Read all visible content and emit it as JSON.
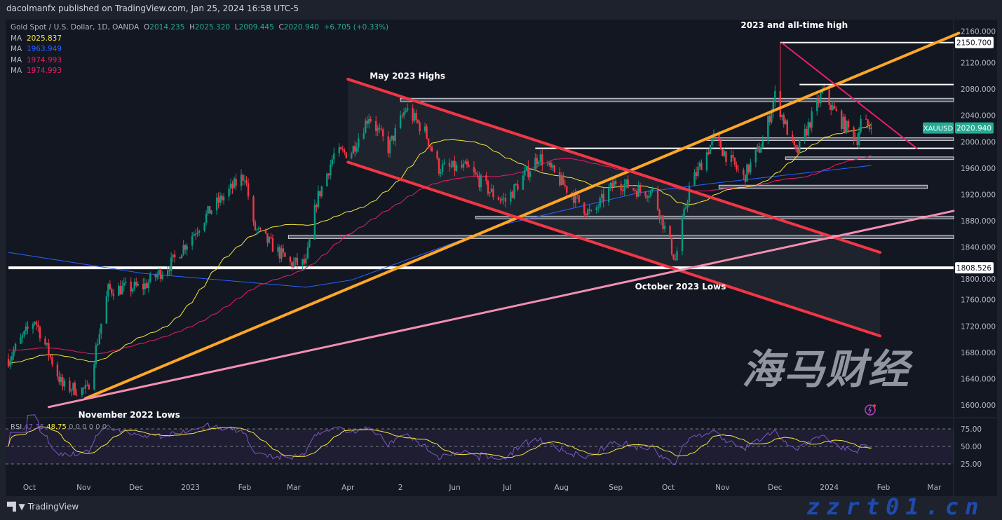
{
  "header": {
    "published": "dacolmanfx published on TradingView.com, Jan 25, 2024 16:58 UTC-5"
  },
  "legend": {
    "symbol": "Gold Spot / U.S. Dollar, 1D, OANDA",
    "open_label": "O",
    "open": "2014.235",
    "high_label": "H",
    "high": "2025.320",
    "low_label": "L",
    "low": "2009.445",
    "close_label": "C",
    "close": "2020.940",
    "change": "+6.705 (+0.33%)",
    "mas": [
      {
        "label": "MA",
        "value": "2025.837",
        "color": "#f5e83b"
      },
      {
        "label": "MA",
        "value": "1963.949",
        "color": "#2962ff"
      },
      {
        "label": "MA",
        "value": "1974.993",
        "color": "#e91e63"
      },
      {
        "label": "MA",
        "value": "1974.993",
        "color": "#e91e63"
      }
    ]
  },
  "price_tag": {
    "symbol": "XAUUSD",
    "value": "2020.940",
    "color": "#22ab94"
  },
  "level_tags": [
    {
      "value": "2150.700"
    },
    {
      "value": "1808.526"
    }
  ],
  "rsi_legend": {
    "label": "RSI",
    "rsi": "47.35",
    "ma": "48.75",
    "extras": "0 0 0 0 0 0"
  },
  "footer": {
    "brand": "TradingView"
  },
  "watermark": {
    "cn": "海马财经",
    "url": "zzrt01.cn"
  },
  "chart_data": {
    "type": "candlestick",
    "title": "Gold Spot / U.S. Dollar, 1D, OANDA",
    "ylim": [
      1580,
      2175
    ],
    "yticks": [
      "2160.000",
      "2120.000",
      "2080.000",
      "2040.000",
      "2000.000",
      "1960.000",
      "1920.000",
      "1880.000",
      "1840.000",
      "1800.000",
      "1760.000",
      "1720.000",
      "1680.000",
      "1640.000",
      "1600.000"
    ],
    "xticks": [
      {
        "label": "Oct",
        "date": "2022-10-01"
      },
      {
        "label": "Nov",
        "date": "2022-11-01"
      },
      {
        "label": "Dec",
        "date": "2022-12-01"
      },
      {
        "label": "2023",
        "date": "2023-01-01"
      },
      {
        "label": "Feb",
        "date": "2023-02-01"
      },
      {
        "label": "Mar",
        "date": "2023-03-01"
      },
      {
        "label": "Apr",
        "date": "2023-04-01"
      },
      {
        "label": "2",
        "date": "2023-05-01"
      },
      {
        "label": "Jun",
        "date": "2023-06-01"
      },
      {
        "label": "Jul",
        "date": "2023-07-01"
      },
      {
        "label": "Aug",
        "date": "2023-08-01"
      },
      {
        "label": "Sep",
        "date": "2023-09-01"
      },
      {
        "label": "Oct",
        "date": "2023-10-01"
      },
      {
        "label": "Nov",
        "date": "2023-11-01"
      },
      {
        "label": "Dec",
        "date": "2023-12-01"
      },
      {
        "label": "2024",
        "date": "2024-01-01"
      },
      {
        "label": "Feb",
        "date": "2024-02-01"
      },
      {
        "label": "Mar",
        "date": "2024-03-01"
      }
    ],
    "price_path": [
      [
        "2022-09-19",
        1670
      ],
      [
        "2022-10-04",
        1730
      ],
      [
        "2022-10-20",
        1628
      ],
      [
        "2022-11-03",
        1622
      ],
      [
        "2022-11-15",
        1775
      ],
      [
        "2022-12-05",
        1780
      ],
      [
        "2022-12-21",
        1815
      ],
      [
        "2023-01-12",
        1895
      ],
      [
        "2023-02-01",
        1950
      ],
      [
        "2023-02-06",
        1870
      ],
      [
        "2023-02-27",
        1815
      ],
      [
        "2023-03-08",
        1815
      ],
      [
        "2023-03-14",
        1910
      ],
      [
        "2023-03-24",
        1980
      ],
      [
        "2023-04-03",
        1985
      ],
      [
        "2023-04-13",
        2040
      ],
      [
        "2023-04-24",
        1990
      ],
      [
        "2023-05-04",
        2050
      ],
      [
        "2023-05-15",
        2015
      ],
      [
        "2023-05-23",
        1960
      ],
      [
        "2023-06-08",
        1960
      ],
      [
        "2023-06-23",
        1920
      ],
      [
        "2023-06-30",
        1910
      ],
      [
        "2023-07-19",
        1978
      ],
      [
        "2023-08-02",
        1935
      ],
      [
        "2023-08-18",
        1888
      ],
      [
        "2023-09-01",
        1940
      ],
      [
        "2023-09-15",
        1925
      ],
      [
        "2023-09-22",
        1925
      ],
      [
        "2023-10-05",
        1820
      ],
      [
        "2023-10-13",
        1930
      ],
      [
        "2023-10-27",
        2005
      ],
      [
        "2023-11-13",
        1945
      ],
      [
        "2023-11-24",
        2000
      ],
      [
        "2023-12-01",
        2070
      ],
      [
        "2023-12-13",
        1980
      ],
      [
        "2023-12-28",
        2075
      ],
      [
        "2024-01-08",
        2030
      ],
      [
        "2024-01-17",
        2005
      ],
      [
        "2024-01-19",
        2030
      ],
      [
        "2024-01-25",
        2020.94
      ]
    ],
    "all_time_high": {
      "date": "2023-12-04",
      "value": 2150.7
    },
    "ma200_path": [
      [
        "2022-09-19",
        1832
      ],
      [
        "2022-12-05",
        1800
      ],
      [
        "2023-03-08",
        1779
      ],
      [
        "2023-04-03",
        1790
      ],
      [
        "2023-06-30",
        1875
      ],
      [
        "2023-09-15",
        1923
      ],
      [
        "2023-10-27",
        1937
      ],
      [
        "2024-01-25",
        1964
      ]
    ],
    "moving_averages": [
      {
        "period": 50,
        "color": "#f5e83b"
      },
      {
        "period": 100,
        "color": "#e91e63"
      },
      {
        "period": 200,
        "color": "#2962ff"
      }
    ],
    "colors": {
      "up": "#089981",
      "down": "#f23645",
      "trend_orange": "#ffa726",
      "channel_red": "#f23645",
      "support_pink": "#f48fb1",
      "resistance_magenta": "#e91e63"
    },
    "trendlines": [
      {
        "name": "rising-support-orange",
        "from": [
          "2022-11-02",
          1610
        ],
        "to": [
          "2024-03-15",
          2165
        ]
      },
      {
        "name": "channel-top-red",
        "from": [
          "2023-04-01",
          2095
        ],
        "to": [
          "2024-01-30",
          1832
        ]
      },
      {
        "name": "channel-bottom-red",
        "from": [
          "2023-04-01",
          1969
        ],
        "to": [
          "2024-01-30",
          1705
        ]
      },
      {
        "name": "long-support-pink",
        "from": [
          "2022-10-12",
          1597
        ],
        "to": [
          "2024-03-12",
          1895
        ]
      },
      {
        "name": "descending-resistance-magenta",
        "from": [
          "2023-12-05",
          2150
        ],
        "to": [
          "2024-02-20",
          1990
        ]
      }
    ],
    "horizontal_levels": [
      {
        "value": 1808.526,
        "from": "2022-09-19",
        "style": "white-thick"
      },
      {
        "value": 2150.7,
        "from": "2023-12-04",
        "style": "white"
      },
      {
        "value": 2087,
        "from": "2023-12-15",
        "style": "white"
      },
      {
        "value": 1990,
        "from": "2023-07-17",
        "style": "white"
      }
    ],
    "zones": [
      {
        "top": 2066,
        "bottom": 2061,
        "from": "2023-05-01"
      },
      {
        "top": 2006,
        "bottom": 2002,
        "from": "2023-10-23"
      },
      {
        "top": 1977,
        "bottom": 1973,
        "from": "2023-12-07"
      },
      {
        "top": 1934,
        "bottom": 1929,
        "from": "2023-10-30",
        "to": "2024-02-26"
      },
      {
        "top": 1887,
        "bottom": 1883,
        "from": "2023-06-13"
      },
      {
        "top": 1858,
        "bottom": 1853,
        "from": "2023-02-26"
      }
    ],
    "annotations": [
      {
        "text": "2023 and all-time high",
        "date": "2023-12-12",
        "value": 2177
      },
      {
        "text": "May 2023 Highs",
        "date": "2023-05-05",
        "value": 2100
      },
      {
        "text": "October 2023 Lows",
        "date": "2023-10-08",
        "value": 1780
      },
      {
        "text": "November 2022 Lows",
        "date": "2022-11-27",
        "value": 1585
      }
    ],
    "rsi": {
      "period": 14,
      "ma_period": 14,
      "levels": [
        75,
        50,
        25
      ],
      "ticks": [
        "75.00",
        "50.00",
        "25.00"
      ],
      "color": "#7e57c2",
      "ma_color": "#f5e83b"
    }
  }
}
